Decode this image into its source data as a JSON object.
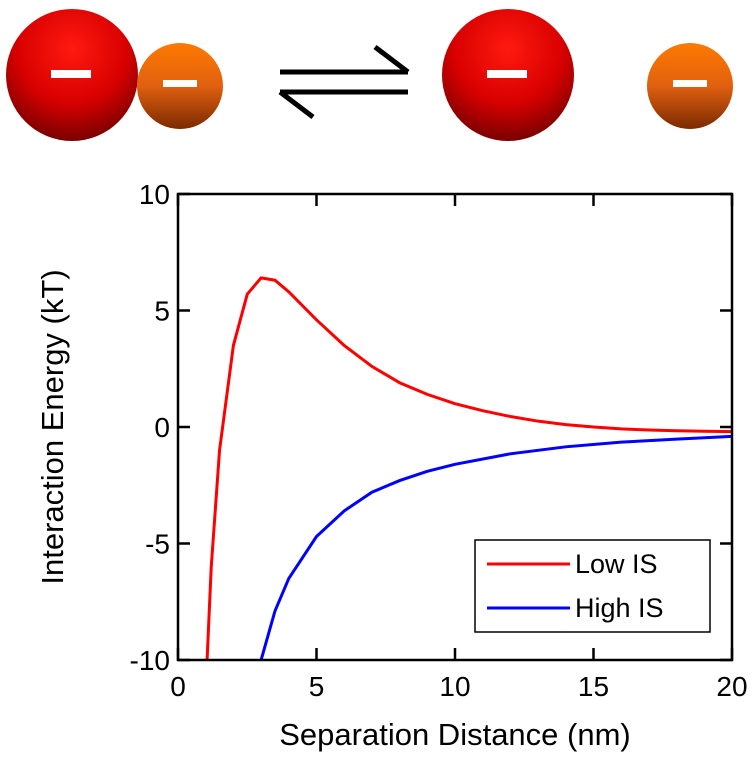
{
  "chart_data": {
    "type": "line",
    "xlabel": "Separation Distance (nm)",
    "ylabel": "Interaction Energy (kT)",
    "xlim": [
      0,
      20
    ],
    "ylim": [
      -10,
      10
    ],
    "xticks": [
      0,
      5,
      10,
      15,
      20
    ],
    "yticks": [
      -10,
      -5,
      0,
      5,
      10
    ],
    "legend": "lower right",
    "series": [
      {
        "name": "Low IS",
        "color": "#ff0000",
        "x": [
          1.05,
          1.2,
          1.5,
          2,
          2.5,
          3,
          3.5,
          4,
          5,
          6,
          7,
          8,
          9,
          10,
          11,
          12,
          13,
          14,
          15,
          16,
          17,
          18,
          19,
          20
        ],
        "values": [
          -10,
          -6,
          -1,
          3.5,
          5.7,
          6.4,
          6.3,
          5.8,
          4.6,
          3.5,
          2.6,
          1.9,
          1.4,
          1.0,
          0.7,
          0.45,
          0.25,
          0.1,
          0.0,
          -0.08,
          -0.13,
          -0.16,
          -0.18,
          -0.2
        ]
      },
      {
        "name": "High IS",
        "color": "#0000ff",
        "x": [
          3.0,
          3.5,
          4,
          5,
          6,
          7,
          8,
          9,
          10,
          12,
          14,
          16,
          18,
          20
        ],
        "values": [
          -10,
          -7.9,
          -6.5,
          -4.7,
          -3.6,
          -2.8,
          -2.3,
          -1.9,
          -1.6,
          -1.15,
          -0.85,
          -0.65,
          -0.52,
          -0.4
        ]
      }
    ]
  }
}
